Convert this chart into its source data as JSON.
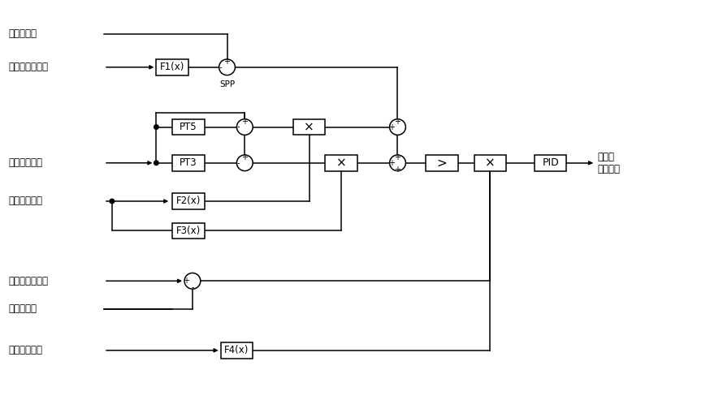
{
  "figsize": [
    8.74,
    4.93
  ],
  "dpi": 100,
  "bg_color": "#ffffff",
  "labels": {
    "input1": "壁温高选值",
    "input2": "过热器出口压力",
    "input3": "减温器后温度",
    "input4": "机组负荷指令",
    "input5": "过热器出口温度",
    "input6": "汽温设定值",
    "input7": "机组负荷指令",
    "output1": "减温水\n调门指令",
    "spp": "SPP"
  },
  "blocks": {
    "F1x": "F1(x)",
    "PT5": "PT5",
    "PT3": "PT3",
    "F2x": "F2(x)",
    "F3x": "F3(x)",
    "F4x": "F4(x)",
    "mul1": "×",
    "mul2": "×",
    "mul3": "×",
    "gt": ">",
    "PID": "PID"
  },
  "y_rows": [
    38,
    80,
    155,
    200,
    248,
    285,
    348,
    383,
    435
  ],
  "lfs": 8.5,
  "cr": 10,
  "bw": 40,
  "bh": 20
}
